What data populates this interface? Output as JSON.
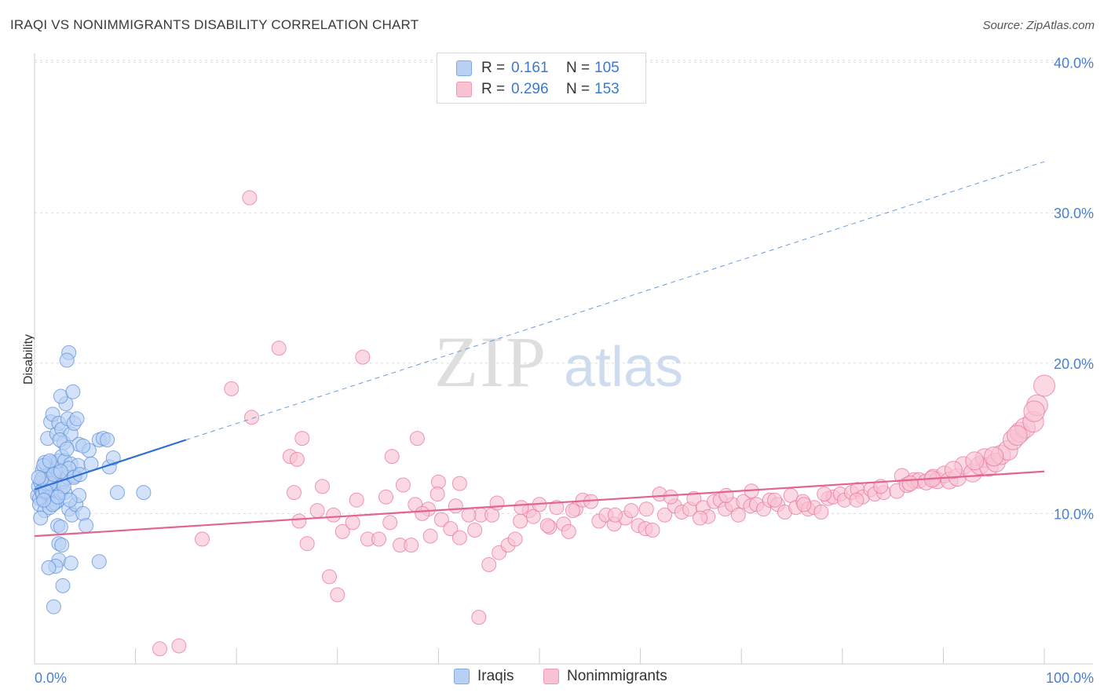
{
  "title": "IRAQI VS NONIMMIGRANTS DISABILITY CORRELATION CHART",
  "source": "Source: ZipAtlas.com",
  "watermark": {
    "zip": "ZIP",
    "atlas": "atlas"
  },
  "legend": {
    "rows": [
      {
        "r_label": "R =",
        "r_value": "0.161",
        "n_label": "N =",
        "n_value": "105",
        "color": "#b8d0f3",
        "border": "#7fa8e4"
      },
      {
        "r_label": "R =",
        "r_value": "0.296",
        "n_label": "N =",
        "n_value": "153",
        "color": "#f8c2d2",
        "border": "#ef9ab4"
      }
    ]
  },
  "bottom_legend": [
    {
      "label": "Iraqis",
      "color": "#b8d0f3",
      "border": "#7fa8e4"
    },
    {
      "label": "Nonimmigrants",
      "color": "#f8c2d2",
      "border": "#ef9ab4"
    }
  ],
  "chart_data": {
    "type": "scatter",
    "title": "IRAQI VS NONIMMIGRANTS DISABILITY CORRELATION CHART",
    "xlabel": "",
    "ylabel": "Disability",
    "xlim": [
      0,
      100
    ],
    "ylim": [
      0,
      40
    ],
    "x_tick_labels": [
      "0.0%",
      "100.0%"
    ],
    "y_ticks": [
      10,
      20,
      30,
      40
    ],
    "y_tick_labels": [
      "10.0%",
      "20.0%",
      "30.0%",
      "40.0%"
    ],
    "grid": true,
    "legend_position": "top-center",
    "series": [
      {
        "name": "Iraqis",
        "color": "#5b8fdc",
        "fill": "#b8d0f3",
        "trend": {
          "x": [
            0,
            15
          ],
          "y": [
            11.6,
            14.9
          ],
          "solid": true
        },
        "trend_extension": {
          "x": [
            15,
            100
          ],
          "y": [
            14.9,
            33.4
          ],
          "dashed": true
        },
        "points": [
          [
            0.3,
            11.2
          ],
          [
            0.4,
            11.8
          ],
          [
            0.5,
            11.0
          ],
          [
            0.6,
            12.1
          ],
          [
            0.7,
            11.5
          ],
          [
            0.8,
            11.3
          ],
          [
            0.9,
            12.4
          ],
          [
            1.0,
            11.7
          ],
          [
            1.1,
            10.9
          ],
          [
            1.2,
            11.4
          ],
          [
            1.3,
            12.0
          ],
          [
            1.4,
            11.1
          ],
          [
            1.5,
            11.6
          ],
          [
            1.6,
            12.3
          ],
          [
            1.7,
            11.2
          ],
          [
            1.8,
            11.9
          ],
          [
            1.9,
            11.0
          ],
          [
            2.0,
            12.2
          ],
          [
            2.1,
            11.5
          ],
          [
            2.2,
            10.8
          ],
          [
            0.5,
            10.6
          ],
          [
            1.0,
            10.2
          ],
          [
            1.5,
            10.4
          ],
          [
            2.0,
            10.7
          ],
          [
            0.6,
            9.7
          ],
          [
            0.8,
            12.9
          ],
          [
            1.2,
            13.2
          ],
          [
            1.4,
            12.6
          ],
          [
            1.7,
            13.4
          ],
          [
            2.1,
            13.0
          ],
          [
            2.4,
            12.7
          ],
          [
            2.6,
            11.4
          ],
          [
            2.8,
            12.1
          ],
          [
            1.3,
            15.0
          ],
          [
            1.6,
            16.1
          ],
          [
            1.8,
            16.6
          ],
          [
            2.2,
            15.3
          ],
          [
            2.4,
            16.0
          ],
          [
            2.7,
            15.6
          ],
          [
            2.9,
            14.7
          ],
          [
            3.1,
            17.3
          ],
          [
            3.3,
            16.3
          ],
          [
            3.6,
            15.3
          ],
          [
            3.9,
            16.0
          ],
          [
            4.2,
            16.3
          ],
          [
            2.6,
            17.8
          ],
          [
            3.4,
            20.7
          ],
          [
            3.2,
            20.2
          ],
          [
            3.8,
            18.1
          ],
          [
            2.4,
            13.5
          ],
          [
            2.7,
            13.8
          ],
          [
            3.0,
            13.5
          ],
          [
            3.3,
            12.4
          ],
          [
            3.6,
            13.3
          ],
          [
            4.0,
            12.5
          ],
          [
            4.3,
            13.2
          ],
          [
            3.0,
            11.4
          ],
          [
            3.4,
            10.3
          ],
          [
            3.7,
            9.9
          ],
          [
            4.1,
            10.6
          ],
          [
            4.4,
            11.2
          ],
          [
            4.8,
            10.0
          ],
          [
            5.1,
            9.2
          ],
          [
            4.4,
            14.6
          ],
          [
            5.4,
            14.2
          ],
          [
            5.6,
            13.3
          ],
          [
            6.4,
            14.9
          ],
          [
            6.8,
            15.0
          ],
          [
            7.2,
            14.9
          ],
          [
            7.4,
            13.1
          ],
          [
            7.8,
            13.7
          ],
          [
            8.2,
            11.4
          ],
          [
            10.8,
            11.4
          ],
          [
            2.3,
            9.2
          ],
          [
            2.6,
            9.1
          ],
          [
            2.4,
            8.0
          ],
          [
            2.7,
            7.9
          ],
          [
            2.4,
            6.9
          ],
          [
            2.1,
            6.5
          ],
          [
            1.4,
            6.4
          ],
          [
            3.6,
            6.7
          ],
          [
            2.8,
            5.2
          ],
          [
            1.9,
            3.8
          ],
          [
            6.4,
            6.8
          ],
          [
            3.4,
            13.0
          ],
          [
            1.2,
            12.0
          ],
          [
            1.0,
            13.4
          ],
          [
            4.8,
            14.5
          ],
          [
            3.9,
            12.4
          ],
          [
            2.5,
            14.9
          ],
          [
            1.8,
            10.6
          ],
          [
            0.9,
            13.2
          ],
          [
            1.6,
            12.0
          ],
          [
            2.9,
            11.8
          ],
          [
            3.5,
            10.9
          ],
          [
            1.1,
            11.5
          ],
          [
            0.7,
            12.3
          ],
          [
            1.9,
            12.6
          ],
          [
            2.3,
            11.1
          ],
          [
            0.4,
            12.4
          ],
          [
            1.5,
            13.5
          ],
          [
            2.6,
            12.8
          ],
          [
            3.2,
            14.3
          ],
          [
            4.5,
            12.6
          ],
          [
            0.9,
            10.9
          ]
        ]
      },
      {
        "name": "Nonimmigrants",
        "color": "#e8769d",
        "fill": "#f8c2d2",
        "trend": {
          "x": [
            0,
            100
          ],
          "y": [
            8.5,
            12.8
          ],
          "solid": true
        },
        "points": [
          [
            12.4,
            1.0
          ],
          [
            14.3,
            1.2
          ],
          [
            21.3,
            31.0
          ],
          [
            24.2,
            21.0
          ],
          [
            32.5,
            20.4
          ],
          [
            19.5,
            18.3
          ],
          [
            21.5,
            16.4
          ],
          [
            26.5,
            15.0
          ],
          [
            37.9,
            15.0
          ],
          [
            25.3,
            13.8
          ],
          [
            26.0,
            13.6
          ],
          [
            35.4,
            13.8
          ],
          [
            40.0,
            12.1
          ],
          [
            42.1,
            12.0
          ],
          [
            28.5,
            11.8
          ],
          [
            36.5,
            11.9
          ],
          [
            25.7,
            11.4
          ],
          [
            37.7,
            10.6
          ],
          [
            39.0,
            10.3
          ],
          [
            29.6,
            9.9
          ],
          [
            26.2,
            9.5
          ],
          [
            30.5,
            8.8
          ],
          [
            31.5,
            9.4
          ],
          [
            33.0,
            8.3
          ],
          [
            34.1,
            8.3
          ],
          [
            35.2,
            9.4
          ],
          [
            36.2,
            7.9
          ],
          [
            37.3,
            7.9
          ],
          [
            39.2,
            8.5
          ],
          [
            40.3,
            9.6
          ],
          [
            41.2,
            9.0
          ],
          [
            42.1,
            8.4
          ],
          [
            43.6,
            8.9
          ],
          [
            44.2,
            9.9
          ],
          [
            45.3,
            9.9
          ],
          [
            46.0,
            7.4
          ],
          [
            46.9,
            7.9
          ],
          [
            47.6,
            8.3
          ],
          [
            48.1,
            9.5
          ],
          [
            49.0,
            10.2
          ],
          [
            49.4,
            9.8
          ],
          [
            50.0,
            10.6
          ],
          [
            51.0,
            9.1
          ],
          [
            51.7,
            10.4
          ],
          [
            52.4,
            9.3
          ],
          [
            53.6,
            10.3
          ],
          [
            54.3,
            10.9
          ],
          [
            55.1,
            10.8
          ],
          [
            55.9,
            9.5
          ],
          [
            56.6,
            9.9
          ],
          [
            57.4,
            9.3
          ],
          [
            58.5,
            9.7
          ],
          [
            59.1,
            10.2
          ],
          [
            59.8,
            9.2
          ],
          [
            60.5,
            9.0
          ],
          [
            61.2,
            8.9
          ],
          [
            61.9,
            11.3
          ],
          [
            62.4,
            9.9
          ],
          [
            63.4,
            10.5
          ],
          [
            64.1,
            10.1
          ],
          [
            64.9,
            10.3
          ],
          [
            65.3,
            11.0
          ],
          [
            66.2,
            10.4
          ],
          [
            66.7,
            9.8
          ],
          [
            67.3,
            10.8
          ],
          [
            67.9,
            10.9
          ],
          [
            68.4,
            10.3
          ],
          [
            69.1,
            10.6
          ],
          [
            69.7,
            9.9
          ],
          [
            70.2,
            10.8
          ],
          [
            70.9,
            10.5
          ],
          [
            71.5,
            10.6
          ],
          [
            72.2,
            10.3
          ],
          [
            72.8,
            10.9
          ],
          [
            73.6,
            10.6
          ],
          [
            74.3,
            10.1
          ],
          [
            74.9,
            11.2
          ],
          [
            75.4,
            10.4
          ],
          [
            76.1,
            10.8
          ],
          [
            76.6,
            10.3
          ],
          [
            77.2,
            10.4
          ],
          [
            77.9,
            10.1
          ],
          [
            78.6,
            11.0
          ],
          [
            79.1,
            11.1
          ],
          [
            79.8,
            11.3
          ],
          [
            80.2,
            10.9
          ],
          [
            80.9,
            11.4
          ],
          [
            81.5,
            11.6
          ],
          [
            82.0,
            11.1
          ],
          [
            82.8,
            11.6
          ],
          [
            83.2,
            11.3
          ],
          [
            84.1,
            11.4
          ],
          [
            85.4,
            11.5
          ],
          [
            85.9,
            12.5
          ],
          [
            86.4,
            11.9
          ],
          [
            87.1,
            12.2
          ],
          [
            87.6,
            12.2
          ],
          [
            88.3,
            12.1
          ],
          [
            89.0,
            12.4
          ],
          [
            89.4,
            12.2
          ],
          [
            90.1,
            12.6
          ],
          [
            90.6,
            12.2
          ],
          [
            91.4,
            12.4
          ],
          [
            92.0,
            13.2
          ],
          [
            92.9,
            12.7
          ],
          [
            93.6,
            13.2
          ],
          [
            94.1,
            13.7
          ],
          [
            94.5,
            13.1
          ],
          [
            95.2,
            13.4
          ],
          [
            95.7,
            13.9
          ],
          [
            96.4,
            14.2
          ],
          [
            96.9,
            14.9
          ],
          [
            97.6,
            15.4
          ],
          [
            98.1,
            15.7
          ],
          [
            98.9,
            16.1
          ],
          [
            99.3,
            17.2
          ],
          [
            100.0,
            18.5
          ],
          [
            39.9,
            11.3
          ],
          [
            41.7,
            10.5
          ],
          [
            45.0,
            6.6
          ],
          [
            29.2,
            5.8
          ],
          [
            30.0,
            4.6
          ],
          [
            44.0,
            3.1
          ],
          [
            16.6,
            8.3
          ],
          [
            27.0,
            8.0
          ],
          [
            48.2,
            10.4
          ],
          [
            50.8,
            9.2
          ],
          [
            52.9,
            8.8
          ],
          [
            34.8,
            11.1
          ],
          [
            38.4,
            10.0
          ],
          [
            43.0,
            9.9
          ],
          [
            45.8,
            10.7
          ],
          [
            53.3,
            10.2
          ],
          [
            57.5,
            9.9
          ],
          [
            60.6,
            10.3
          ],
          [
            63.0,
            11.1
          ],
          [
            65.9,
            9.7
          ],
          [
            68.5,
            11.2
          ],
          [
            71.0,
            11.5
          ],
          [
            73.3,
            10.9
          ],
          [
            76.2,
            10.6
          ],
          [
            78.2,
            11.3
          ],
          [
            81.4,
            10.9
          ],
          [
            83.8,
            11.8
          ],
          [
            86.7,
            12.0
          ],
          [
            88.9,
            12.3
          ],
          [
            91.0,
            12.9
          ],
          [
            93.1,
            13.5
          ],
          [
            95.0,
            13.8
          ],
          [
            97.3,
            15.2
          ],
          [
            99.0,
            16.8
          ],
          [
            28.0,
            10.2
          ],
          [
            31.9,
            10.9
          ]
        ]
      }
    ]
  }
}
